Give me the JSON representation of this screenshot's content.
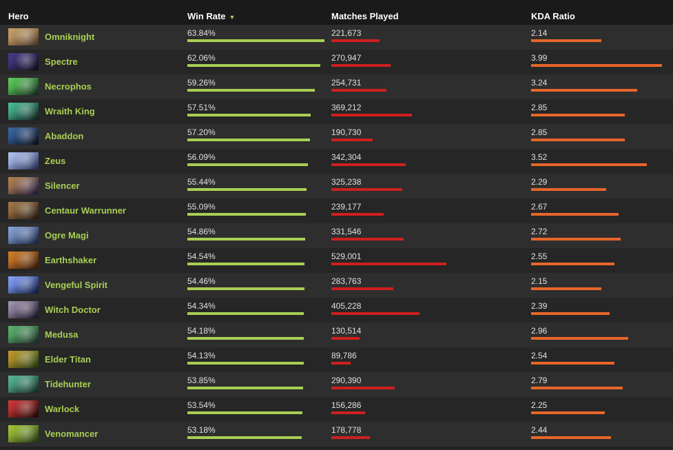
{
  "header": {
    "hero": "Hero",
    "win_rate": "Win Rate",
    "sort_arrow": "▼",
    "matches": "Matches Played",
    "kda": "KDA Ratio"
  },
  "colors": {
    "hero_name": "#a9cf54",
    "win_bar": "#a9cf54",
    "matches_bar": "#cf1f1f",
    "kda_bar": "#e8662a"
  },
  "rows": [
    {
      "hero": "Omniknight",
      "win_rate": "63.84%",
      "matches": "221,673",
      "kda": "2.14",
      "win_value": 63.84,
      "matches_value": 221673,
      "kda_value": 2.14,
      "avatar_colors": [
        "#c9a36a",
        "#7a5a3a"
      ]
    },
    {
      "hero": "Spectre",
      "win_rate": "62.06%",
      "matches": "270,947",
      "kda": "3.99",
      "win_value": 62.06,
      "matches_value": 270947,
      "kda_value": 3.99,
      "avatar_colors": [
        "#4a3a8a",
        "#1a1530"
      ]
    },
    {
      "hero": "Necrophos",
      "win_rate": "59.26%",
      "matches": "254,731",
      "kda": "3.24",
      "win_value": 59.26,
      "matches_value": 254731,
      "kda_value": 3.24,
      "avatar_colors": [
        "#5fd35a",
        "#1d4a2a"
      ]
    },
    {
      "hero": "Wraith King",
      "win_rate": "57.51%",
      "matches": "369,212",
      "kda": "2.85",
      "win_value": 57.51,
      "matches_value": 369212,
      "kda_value": 2.85,
      "avatar_colors": [
        "#49c29a",
        "#1a3d35"
      ]
    },
    {
      "hero": "Abaddon",
      "win_rate": "57.20%",
      "matches": "190,730",
      "kda": "2.85",
      "win_value": 57.2,
      "matches_value": 190730,
      "kda_value": 2.85,
      "avatar_colors": [
        "#3a6aa8",
        "#101a30"
      ]
    },
    {
      "hero": "Zeus",
      "win_rate": "56.09%",
      "matches": "342,304",
      "kda": "3.52",
      "win_value": 56.09,
      "matches_value": 342304,
      "kda_value": 3.52,
      "avatar_colors": [
        "#b9c8f0",
        "#3b4b8a"
      ]
    },
    {
      "hero": "Silencer",
      "win_rate": "55.44%",
      "matches": "325,238",
      "kda": "2.29",
      "win_value": 55.44,
      "matches_value": 325238,
      "kda_value": 2.29,
      "avatar_colors": [
        "#b8884a",
        "#3a2a5a"
      ]
    },
    {
      "hero": "Centaur Warrunner",
      "win_rate": "55.09%",
      "matches": "239,177",
      "kda": "2.67",
      "win_value": 55.09,
      "matches_value": 239177,
      "kda_value": 2.67,
      "avatar_colors": [
        "#a87a4a",
        "#3a2a1a"
      ]
    },
    {
      "hero": "Ogre Magi",
      "win_rate": "54.86%",
      "matches": "331,546",
      "kda": "2.72",
      "win_value": 54.86,
      "matches_value": 331546,
      "kda_value": 2.72,
      "avatar_colors": [
        "#8aa8d8",
        "#2a3a6a"
      ]
    },
    {
      "hero": "Earthshaker",
      "win_rate": "54.54%",
      "matches": "529,001",
      "kda": "2.55",
      "win_value": 54.54,
      "matches_value": 529001,
      "kda_value": 2.55,
      "avatar_colors": [
        "#d8822a",
        "#5a2a0a"
      ]
    },
    {
      "hero": "Vengeful Spirit",
      "win_rate": "54.46%",
      "matches": "283,763",
      "kda": "2.15",
      "win_value": 54.46,
      "matches_value": 283763,
      "kda_value": 2.15,
      "avatar_colors": [
        "#8aa8ff",
        "#1a2a6a"
      ]
    },
    {
      "hero": "Witch Doctor",
      "win_rate": "54.34%",
      "matches": "405,228",
      "kda": "2.39",
      "win_value": 54.34,
      "matches_value": 405228,
      "kda_value": 2.39,
      "avatar_colors": [
        "#a89ab8",
        "#2a203a"
      ]
    },
    {
      "hero": "Medusa",
      "win_rate": "54.18%",
      "matches": "130,514",
      "kda": "2.96",
      "win_value": 54.18,
      "matches_value": 130514,
      "kda_value": 2.96,
      "avatar_colors": [
        "#5ab86a",
        "#2a4a3a"
      ]
    },
    {
      "hero": "Elder Titan",
      "win_rate": "54.13%",
      "matches": "89,786",
      "kda": "2.54",
      "win_value": 54.13,
      "matches_value": 89786,
      "kda_value": 2.54,
      "avatar_colors": [
        "#c89a2a",
        "#3a5a1a"
      ]
    },
    {
      "hero": "Tidehunter",
      "win_rate": "53.85%",
      "matches": "290,390",
      "kda": "2.79",
      "win_value": 53.85,
      "matches_value": 290390,
      "kda_value": 2.79,
      "avatar_colors": [
        "#5ab89a",
        "#1a4a3a"
      ]
    },
    {
      "hero": "Warlock",
      "win_rate": "53.54%",
      "matches": "156,286",
      "kda": "2.25",
      "win_value": 53.54,
      "matches_value": 156286,
      "kda_value": 2.25,
      "avatar_colors": [
        "#d83a3a",
        "#3a0a0a"
      ]
    },
    {
      "hero": "Venomancer",
      "win_rate": "53.18%",
      "matches": "178,778",
      "kda": "2.44",
      "win_value": 53.18,
      "matches_value": 178778,
      "kda_value": 2.44,
      "avatar_colors": [
        "#a8c83a",
        "#3a5a1a"
      ]
    }
  ]
}
